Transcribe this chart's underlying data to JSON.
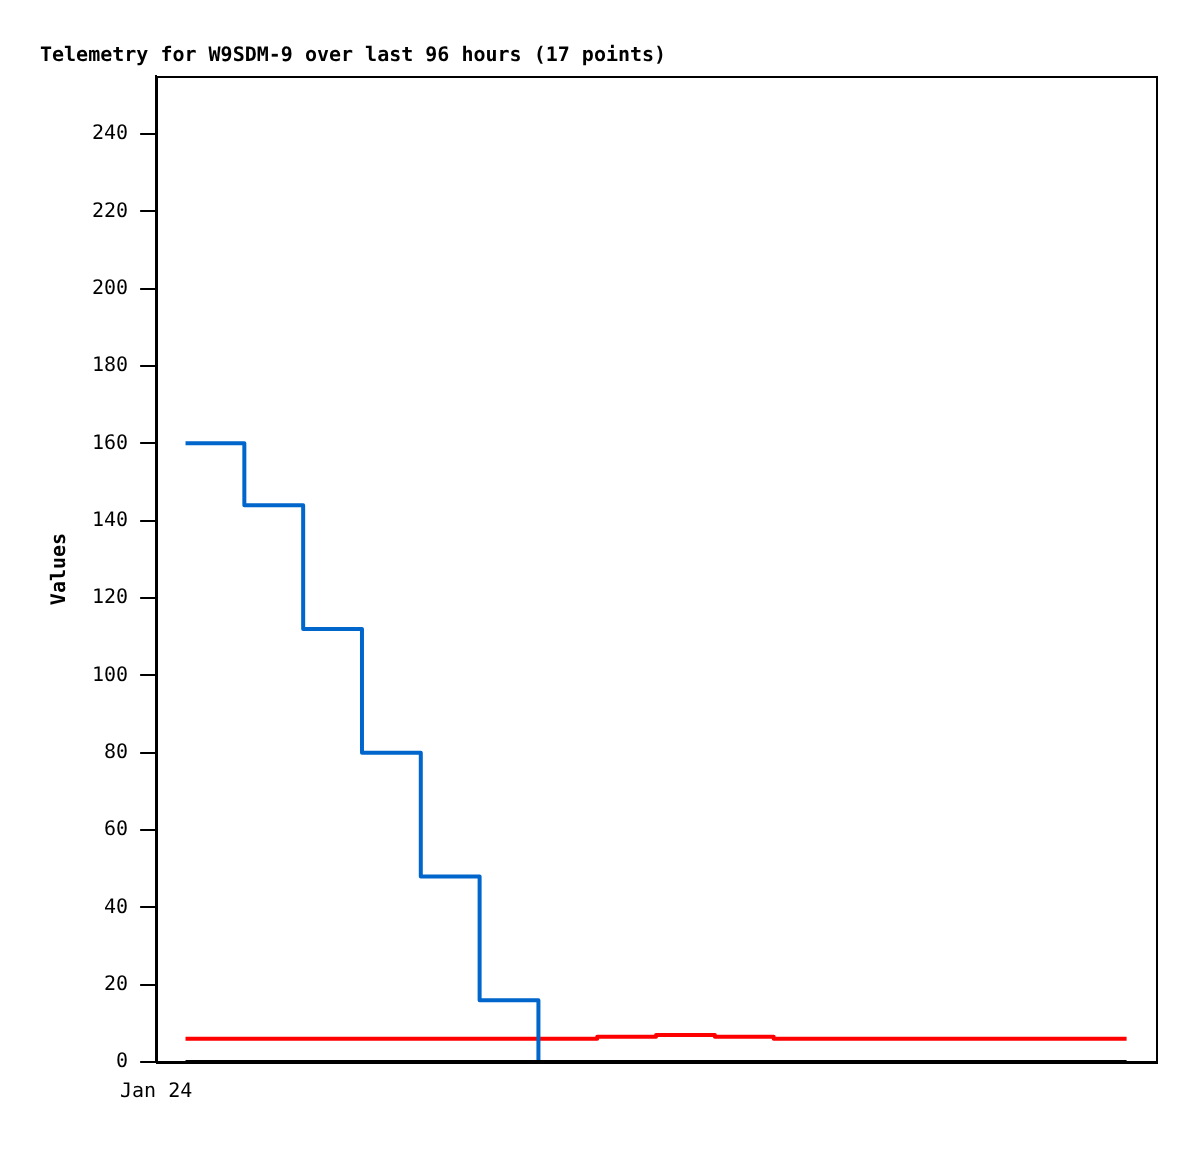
{
  "chart_data": {
    "type": "step",
    "title": "Telemetry for W9SDM-9 over last 96 hours (17 points)",
    "ylabel": "Values",
    "categories": [
      null,
      null,
      null,
      null,
      null,
      null,
      null,
      null,
      null,
      null,
      null,
      null,
      null,
      null,
      null,
      null,
      null
    ],
    "annotations": [
      "Jan 24"
    ],
    "ylim": [
      0,
      255
    ],
    "yticks": [
      0,
      20,
      40,
      60,
      80,
      100,
      120,
      140,
      160,
      180,
      200,
      220,
      240
    ],
    "grid": false,
    "legend": false,
    "marker": "none",
    "series": [
      {
        "color": "#ff0000",
        "values": [
          6,
          6,
          6,
          6,
          6,
          6,
          6,
          6.5,
          7,
          6.5,
          6,
          6,
          6,
          6,
          6,
          6,
          6
        ]
      },
      {
        "color": "#0066cc",
        "values": [
          160,
          144,
          112,
          80,
          48,
          16,
          0,
          null,
          null,
          null,
          null,
          null,
          null,
          null,
          null,
          null,
          null
        ]
      },
      {
        "color": "#000000",
        "values": [
          0,
          0,
          0,
          0,
          0,
          0,
          0,
          0,
          0,
          0,
          0,
          0,
          0,
          0,
          0,
          0,
          0
        ]
      }
    ]
  }
}
